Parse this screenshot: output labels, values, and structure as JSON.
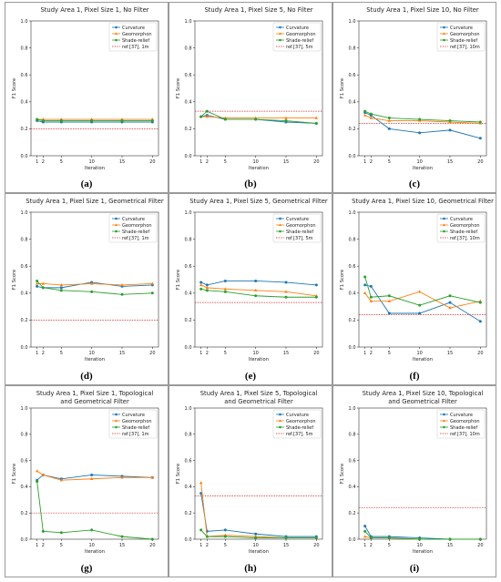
{
  "figure": {
    "x_tick_labels": [
      "1",
      "2",
      "5",
      "10",
      "15",
      "20"
    ],
    "y_tick_labels": [
      "0.0",
      "0.2",
      "0.4",
      "0.6",
      "0.8",
      "1.0"
    ],
    "colors": {
      "curvature": "#1f77b4",
      "geomorphon": "#ff7f0e",
      "shade_relief": "#2ca02c",
      "reference": "#d62728"
    }
  },
  "chart_data": [
    {
      "type": "line",
      "panel_label": "(a)",
      "title": [
        "Study Area 1, Pixel Size 1, No Filter"
      ],
      "xlabel": "Iteration",
      "ylabel": "F1 Score",
      "ylim": [
        0,
        1
      ],
      "x": [
        1,
        2,
        5,
        10,
        15,
        20
      ],
      "series": [
        {
          "name": "Curvature",
          "values": [
            0.26,
            0.25,
            0.25,
            0.25,
            0.25,
            0.25
          ]
        },
        {
          "name": "Geomorphon",
          "values": [
            0.27,
            0.27,
            0.27,
            0.27,
            0.27,
            0.27
          ]
        },
        {
          "name": "Shade-relief",
          "values": [
            0.27,
            0.26,
            0.26,
            0.26,
            0.26,
            0.26
          ]
        }
      ],
      "reference": {
        "name": "ref.[37], 1m",
        "value": 0.2
      }
    },
    {
      "type": "line",
      "panel_label": "(b)",
      "title": [
        "Study Area 1, Pixel Size 5, No Filter"
      ],
      "xlabel": "Iteration",
      "ylabel": "F1 Score",
      "ylim": [
        0,
        1
      ],
      "x": [
        1,
        2,
        5,
        10,
        15,
        20
      ],
      "series": [
        {
          "name": "Curvature",
          "values": [
            0.29,
            0.3,
            0.27,
            0.27,
            0.25,
            0.24
          ]
        },
        {
          "name": "Geomorphon",
          "values": [
            0.29,
            0.29,
            0.28,
            0.28,
            0.28,
            0.28
          ]
        },
        {
          "name": "Shade-relief",
          "values": [
            0.29,
            0.33,
            0.27,
            0.27,
            0.26,
            0.24
          ]
        }
      ],
      "reference": {
        "name": "ref.[37], 5m",
        "value": 0.33
      }
    },
    {
      "type": "line",
      "panel_label": "(c)",
      "title": [
        "Study Area 1, Pixel Size 10, No Filter"
      ],
      "xlabel": "Iteration",
      "ylabel": "F1 Score",
      "ylim": [
        0,
        1
      ],
      "x": [
        1,
        2,
        5,
        10,
        15,
        20
      ],
      "series": [
        {
          "name": "Curvature",
          "values": [
            0.32,
            0.3,
            0.2,
            0.17,
            0.19,
            0.13
          ]
        },
        {
          "name": "Geomorphon",
          "values": [
            0.3,
            0.28,
            0.26,
            0.26,
            0.25,
            0.24
          ]
        },
        {
          "name": "Shade-relief",
          "values": [
            0.33,
            0.31,
            0.28,
            0.27,
            0.26,
            0.25
          ]
        }
      ],
      "reference": {
        "name": "ref.[37], 10m",
        "value": 0.24
      }
    },
    {
      "type": "line",
      "panel_label": "(d)",
      "title": [
        "Study Area 1, Pixel Size 1, Geometrical Filter"
      ],
      "xlabel": "Iteration",
      "ylabel": "F1 Score",
      "ylim": [
        0,
        1
      ],
      "x": [
        1,
        2,
        5,
        10,
        15,
        20
      ],
      "series": [
        {
          "name": "Curvature",
          "values": [
            0.45,
            0.44,
            0.44,
            0.48,
            0.45,
            0.46
          ]
        },
        {
          "name": "Geomorphon",
          "values": [
            0.47,
            0.47,
            0.46,
            0.47,
            0.46,
            0.47
          ]
        },
        {
          "name": "Shade-relief",
          "values": [
            0.49,
            0.44,
            0.42,
            0.41,
            0.39,
            0.4
          ]
        }
      ],
      "reference": {
        "name": "ref.[37], 1m",
        "value": 0.2
      }
    },
    {
      "type": "line",
      "panel_label": "(e)",
      "title": [
        "Study Area 1, Pixel Size 5, Geometrical Filter"
      ],
      "xlabel": "Iteration",
      "ylabel": "F1 Score",
      "ylim": [
        0,
        1
      ],
      "x": [
        1,
        2,
        5,
        10,
        15,
        20
      ],
      "series": [
        {
          "name": "Curvature",
          "values": [
            0.48,
            0.46,
            0.49,
            0.49,
            0.48,
            0.46
          ]
        },
        {
          "name": "Geomorphon",
          "values": [
            0.46,
            0.44,
            0.43,
            0.42,
            0.41,
            0.38
          ]
        },
        {
          "name": "Shade-relief",
          "values": [
            0.43,
            0.42,
            0.41,
            0.38,
            0.37,
            0.37
          ]
        }
      ],
      "reference": {
        "name": "ref.[37], 5m",
        "value": 0.33
      }
    },
    {
      "type": "line",
      "panel_label": "(f)",
      "title": [
        "Study Area 1, Pixel Size 10, Geometrical Filter"
      ],
      "xlabel": "Iteration",
      "ylabel": "F1 Score",
      "ylim": [
        0,
        1
      ],
      "x": [
        1,
        2,
        5,
        10,
        15,
        20
      ],
      "series": [
        {
          "name": "Curvature",
          "values": [
            0.46,
            0.45,
            0.25,
            0.25,
            0.33,
            0.19
          ]
        },
        {
          "name": "Geomorphon",
          "values": [
            0.4,
            0.34,
            0.34,
            0.41,
            0.29,
            0.34
          ]
        },
        {
          "name": "Shade-relief",
          "values": [
            0.52,
            0.37,
            0.38,
            0.31,
            0.38,
            0.33
          ]
        }
      ],
      "reference": {
        "name": "ref.[37], 10m",
        "value": 0.24
      }
    },
    {
      "type": "line",
      "panel_label": "(g)",
      "title": [
        "Study Area 1, Pixel Size 1, Topological",
        "and Geometrical Filter"
      ],
      "xlabel": "Iteration",
      "ylabel": "F1 Score",
      "ylim": [
        0,
        1
      ],
      "x": [
        1,
        2,
        5,
        10,
        15,
        20
      ],
      "series": [
        {
          "name": "Curvature",
          "values": [
            0.45,
            0.49,
            0.46,
            0.49,
            0.48,
            0.47
          ]
        },
        {
          "name": "Geomorphon",
          "values": [
            0.52,
            0.49,
            0.45,
            0.46,
            0.47,
            0.47
          ]
        },
        {
          "name": "Shade-relief",
          "values": [
            0.44,
            0.06,
            0.05,
            0.07,
            0.02,
            0.0
          ]
        }
      ],
      "reference": {
        "name": "ref.[37], 1m",
        "value": 0.2
      }
    },
    {
      "type": "line",
      "panel_label": "(h)",
      "title": [
        "Study Area 1, Pixel Size 5, Topological",
        "and Geometrical Filter"
      ],
      "xlabel": "Iteration",
      "ylabel": "F1 Score",
      "ylim": [
        0,
        1
      ],
      "x": [
        1,
        2,
        5,
        10,
        15,
        20
      ],
      "series": [
        {
          "name": "Curvature",
          "values": [
            0.35,
            0.06,
            0.07,
            0.04,
            0.02,
            0.02
          ]
        },
        {
          "name": "Geomorphon",
          "values": [
            0.43,
            0.02,
            0.03,
            0.02,
            0.01,
            0.01
          ]
        },
        {
          "name": "Shade-relief",
          "values": [
            0.07,
            0.02,
            0.02,
            0.01,
            0.01,
            0.01
          ]
        }
      ],
      "reference": {
        "name": "ref.[37], 5m",
        "value": 0.33
      }
    },
    {
      "type": "line",
      "panel_label": "(i)",
      "title": [
        "Study Area 1, Pixel Size 10, Topological",
        "and Geometrical Filter"
      ],
      "xlabel": "Iteration",
      "ylabel": "F1 Score",
      "ylim": [
        0,
        1
      ],
      "x": [
        1,
        2,
        5,
        10,
        15,
        20
      ],
      "series": [
        {
          "name": "Curvature",
          "values": [
            0.1,
            0.02,
            0.02,
            0.01,
            0.0,
            0.0
          ]
        },
        {
          "name": "Geomorphon",
          "values": [
            0.02,
            0.01,
            0.01,
            0.0,
            0.0,
            0.0
          ]
        },
        {
          "name": "Shade-relief",
          "values": [
            0.06,
            0.01,
            0.01,
            0.0,
            0.0,
            0.0
          ]
        }
      ],
      "reference": {
        "name": "ref.[37], 10m",
        "value": 0.24
      }
    }
  ]
}
